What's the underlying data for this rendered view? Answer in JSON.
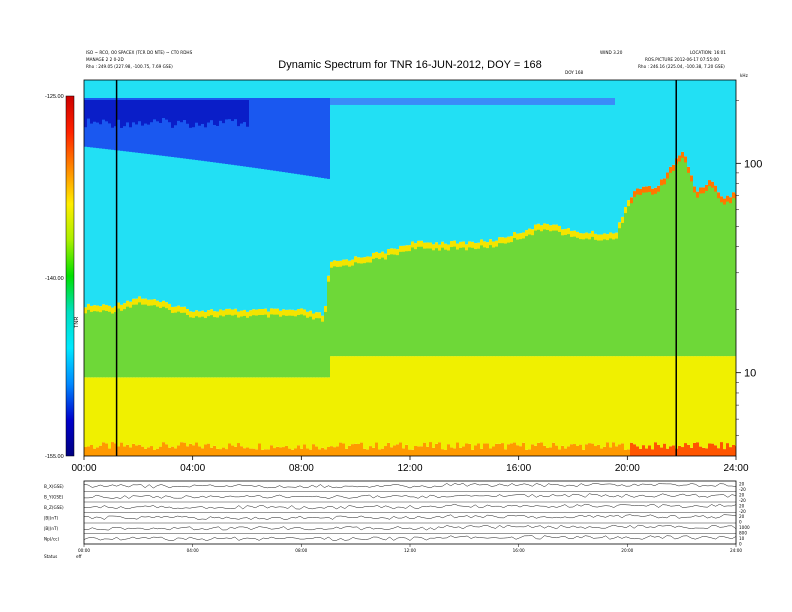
{
  "header": {
    "left_lines": [
      "ISO ~ RCO, O0 SPACEX (TCR DO NTE) ~ CT0 RDHS",
      "MANAGE 2 2 0-2D",
      "Rho : 249.05 (227.98, -100.75, 7.69 GSE)"
    ],
    "center_small": "DOY 168",
    "right_lines": [
      "WIND 3.20",
      "LOCATION: 16:01",
      "ROS.PICTURE 2012-06-17 07:55:00",
      "Rho : 246.16 (225.04, -100.38, 7.20 GSE)"
    ],
    "unit_right": "kHz"
  },
  "chart_data": {
    "type": "heatmap",
    "title": "Dynamic Spectrum for TNR 16-JUN-2012, DOY = 168",
    "xlabel": "",
    "ylabel": "",
    "x_range_hours": [
      0,
      24
    ],
    "x_ticks": [
      "00:00",
      "04:00",
      "08:00",
      "12:00",
      "16:00",
      "20:00",
      "24:00"
    ],
    "y_scale": "log",
    "y_range_khz": [
      4,
      250
    ],
    "y_ticks": [
      {
        "value": 100,
        "label": "100"
      },
      {
        "value": 10,
        "label": "10"
      }
    ],
    "colorbar": {
      "label": "TNR",
      "range_db": [
        -155,
        -125
      ],
      "ticks": [
        "-125.00",
        "-140.00",
        "-155.00"
      ],
      "colors": [
        "#cc0000",
        "#ff2200",
        "#ff8800",
        "#ffee00",
        "#aaf000",
        "#00e000",
        "#00e0c0",
        "#00e8ff",
        "#0088ff",
        "#0000cc",
        "#000080"
      ]
    },
    "vertical_lines_hours": [
      1.2,
      21.8
    ],
    "plasma_line": [
      {
        "t": 0.0,
        "f": 20
      },
      {
        "t": 1.0,
        "f": 20
      },
      {
        "t": 2.0,
        "f": 22
      },
      {
        "t": 4.0,
        "f": 19
      },
      {
        "t": 6.0,
        "f": 19
      },
      {
        "t": 8.0,
        "f": 19
      },
      {
        "t": 8.8,
        "f": 18
      },
      {
        "t": 9.0,
        "f": 32
      },
      {
        "t": 10.0,
        "f": 34
      },
      {
        "t": 11.0,
        "f": 36
      },
      {
        "t": 12.0,
        "f": 40
      },
      {
        "t": 14.0,
        "f": 40
      },
      {
        "t": 15.0,
        "f": 41
      },
      {
        "t": 16.0,
        "f": 45
      },
      {
        "t": 17.0,
        "f": 50
      },
      {
        "t": 18.0,
        "f": 45
      },
      {
        "t": 19.5,
        "f": 44
      },
      {
        "t": 20.0,
        "f": 65
      },
      {
        "t": 20.5,
        "f": 75
      },
      {
        "t": 21.0,
        "f": 72
      },
      {
        "t": 21.5,
        "f": 90
      },
      {
        "t": 22.0,
        "f": 110
      },
      {
        "t": 22.5,
        "f": 70
      },
      {
        "t": 23.0,
        "f": 80
      },
      {
        "t": 23.5,
        "f": 65
      },
      {
        "t": 24.0,
        "f": 70
      }
    ]
  },
  "bottom_panel": {
    "row_labels": [
      "B_X(GSE)",
      "B_Y(GSE)",
      "B_Z(GSE)",
      "|B|(nT)",
      "|B|(nT)",
      "Np(/cc)"
    ],
    "right_labels": [
      "20",
      "-20",
      "20",
      "-20",
      "20",
      "-20",
      "20",
      "0",
      "1000",
      "800",
      "10",
      "0"
    ],
    "x_ticks": [
      "00:00",
      "04:00",
      "08:00",
      "12:00",
      "16:00",
      "20:00",
      "24:00"
    ],
    "footer_labels": [
      "Status",
      "eff"
    ]
  }
}
